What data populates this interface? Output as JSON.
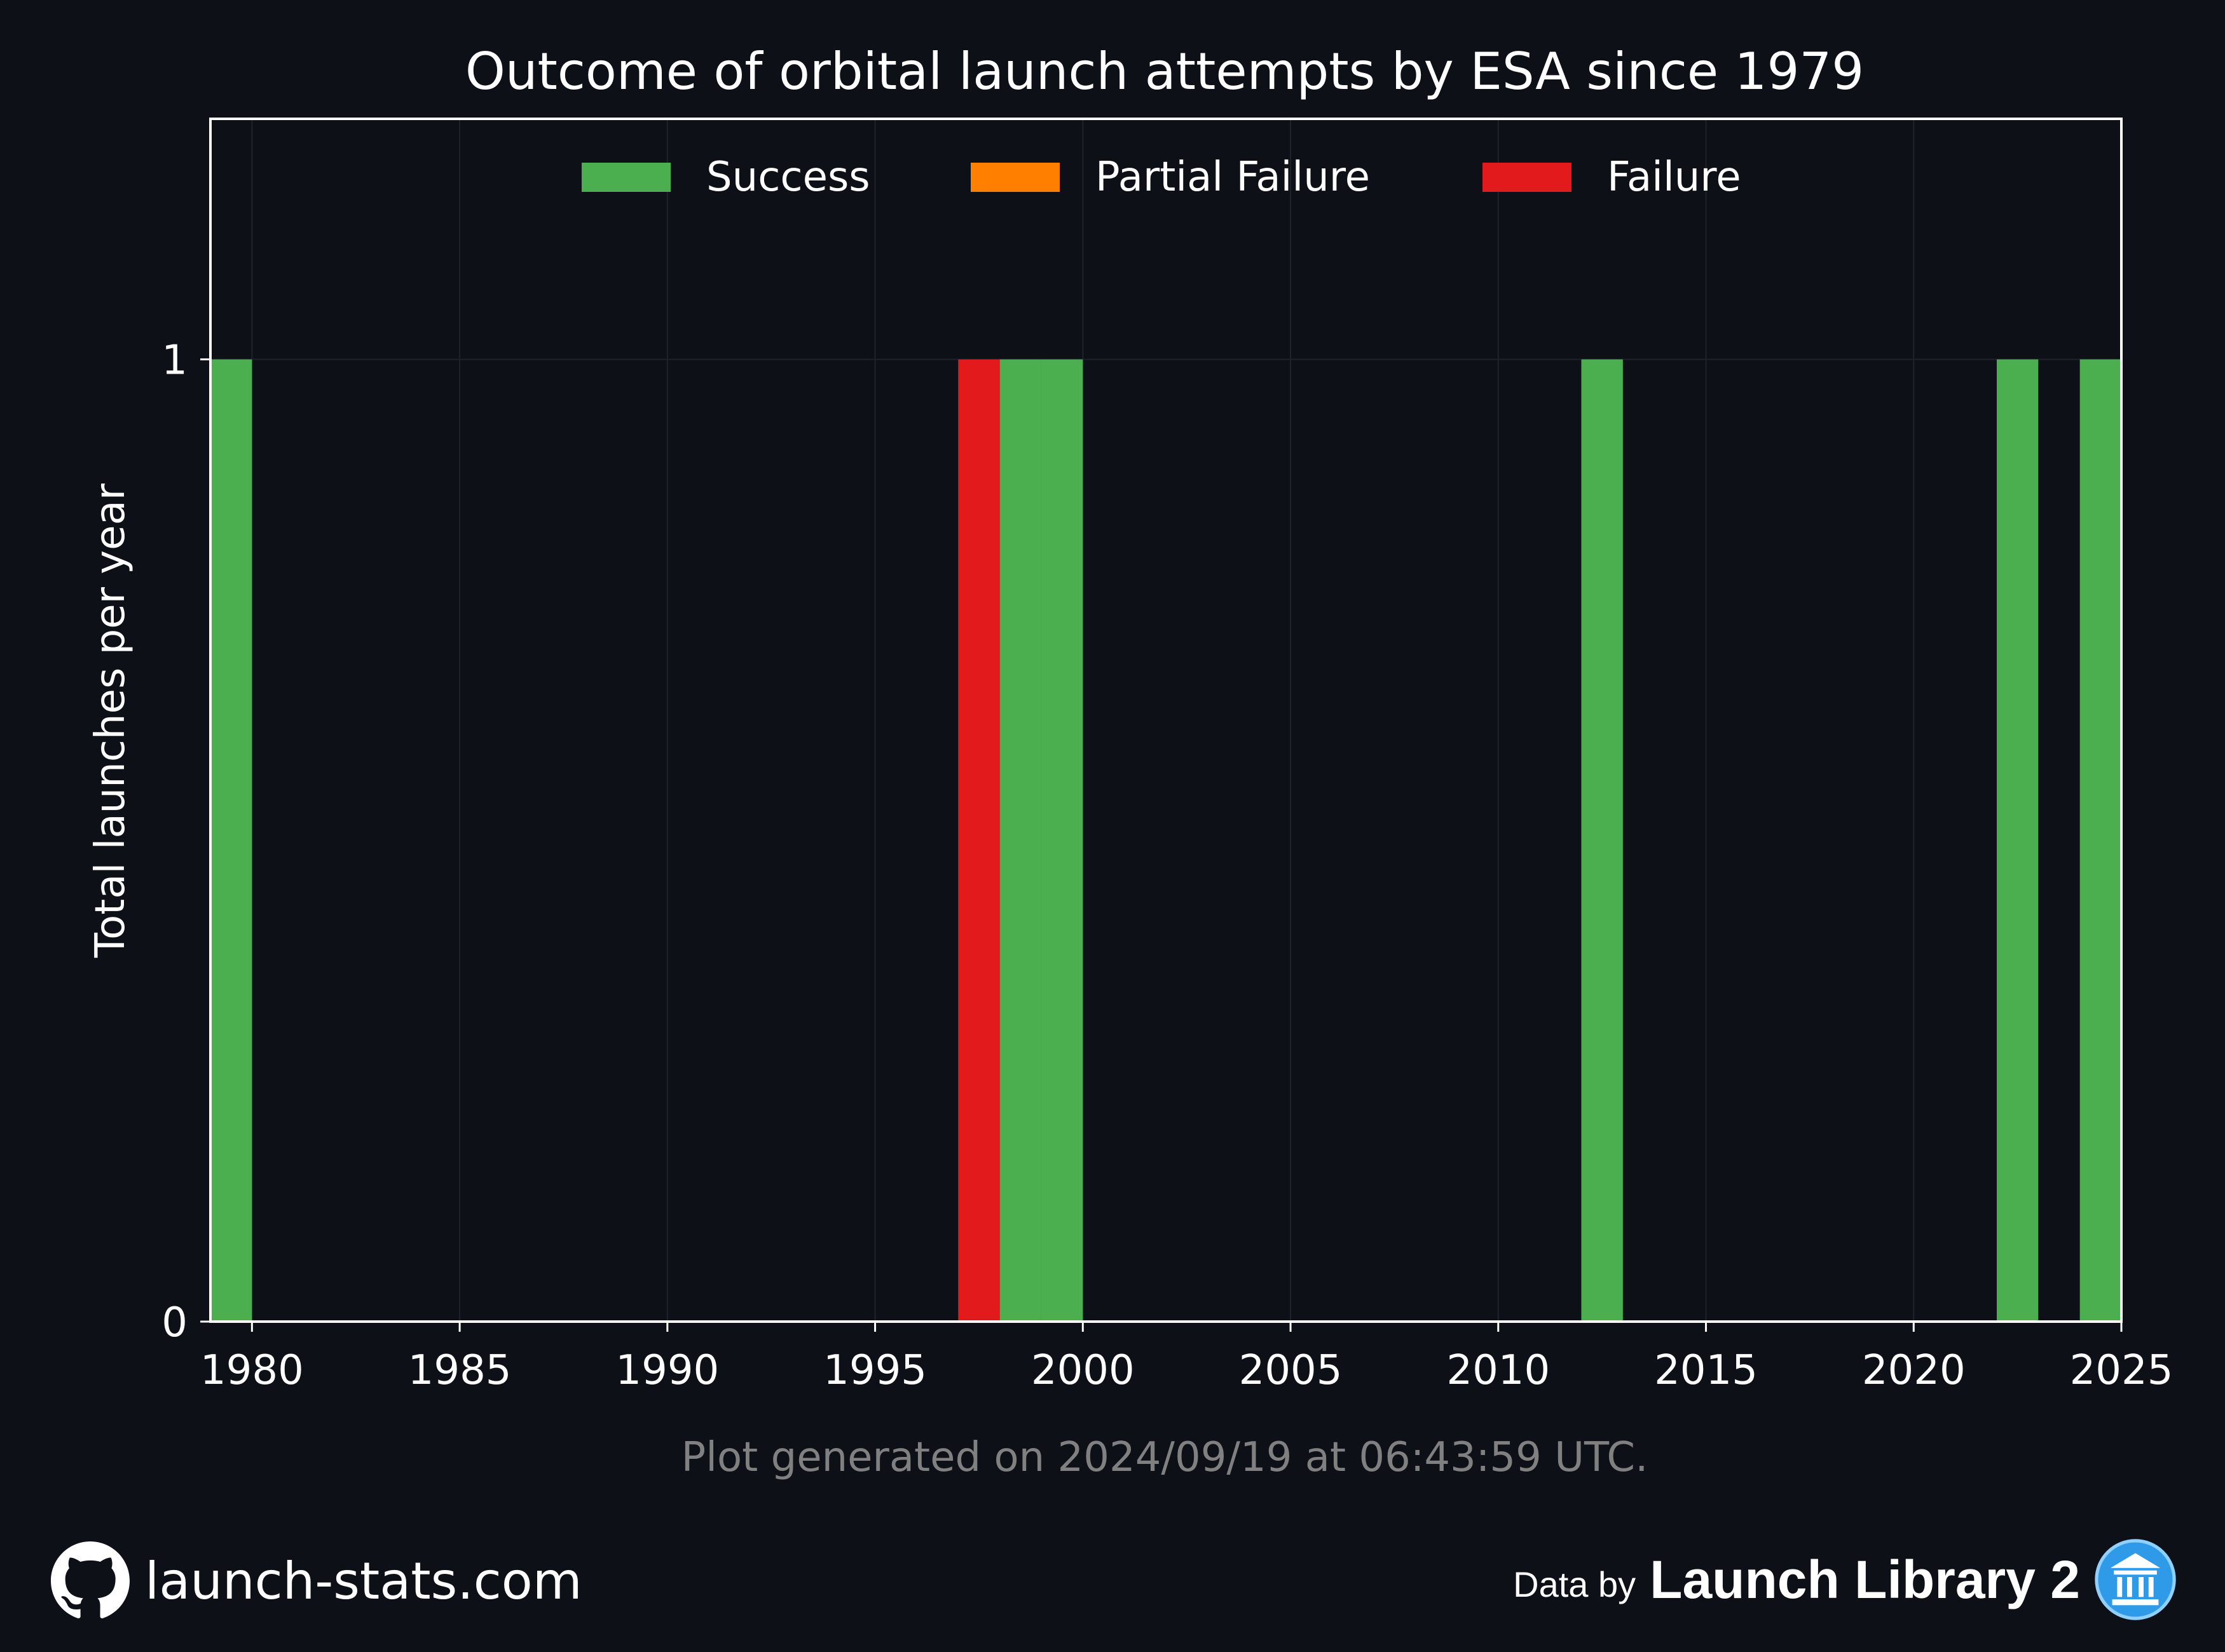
{
  "chart_data": {
    "type": "bar",
    "stacked": true,
    "title": "Outcome of orbital launch attempts by ESA since 1979",
    "xlabel": "",
    "ylabel": "Total launches per year",
    "xlim": [
      1979,
      2025
    ],
    "ylim": [
      0,
      1.25
    ],
    "x_ticks": [
      1980,
      1985,
      1990,
      1995,
      2000,
      2005,
      2010,
      2015,
      2020,
      2025
    ],
    "y_ticks": [
      0,
      1
    ],
    "grid": true,
    "legend_position": "top-center",
    "series": [
      {
        "name": "Success",
        "color": "#4caf4f",
        "points": [
          {
            "year": 1979,
            "value": 1
          },
          {
            "year": 1998,
            "value": 1
          },
          {
            "year": 1999,
            "value": 1
          },
          {
            "year": 2012,
            "value": 1
          },
          {
            "year": 2022,
            "value": 1
          },
          {
            "year": 2024,
            "value": 1
          }
        ]
      },
      {
        "name": "Partial Failure",
        "color": "#ff7f00",
        "points": []
      },
      {
        "name": "Failure",
        "color": "#e31a1c",
        "points": [
          {
            "year": 1997,
            "value": 1
          }
        ]
      }
    ]
  },
  "footer": {
    "generated": "Plot generated on 2024/09/19 at 06:43:59 UTC.",
    "site": "launch-stats.com",
    "data_by": "Data by",
    "brand": "Launch Library 2",
    "github_icon": "github-icon",
    "ll2_icon": "launch-library-logo-icon"
  },
  "colors": {
    "background": "#0d1017",
    "axis": "#ffffff",
    "grid": "#1e222b",
    "muted_text": "#808080"
  }
}
